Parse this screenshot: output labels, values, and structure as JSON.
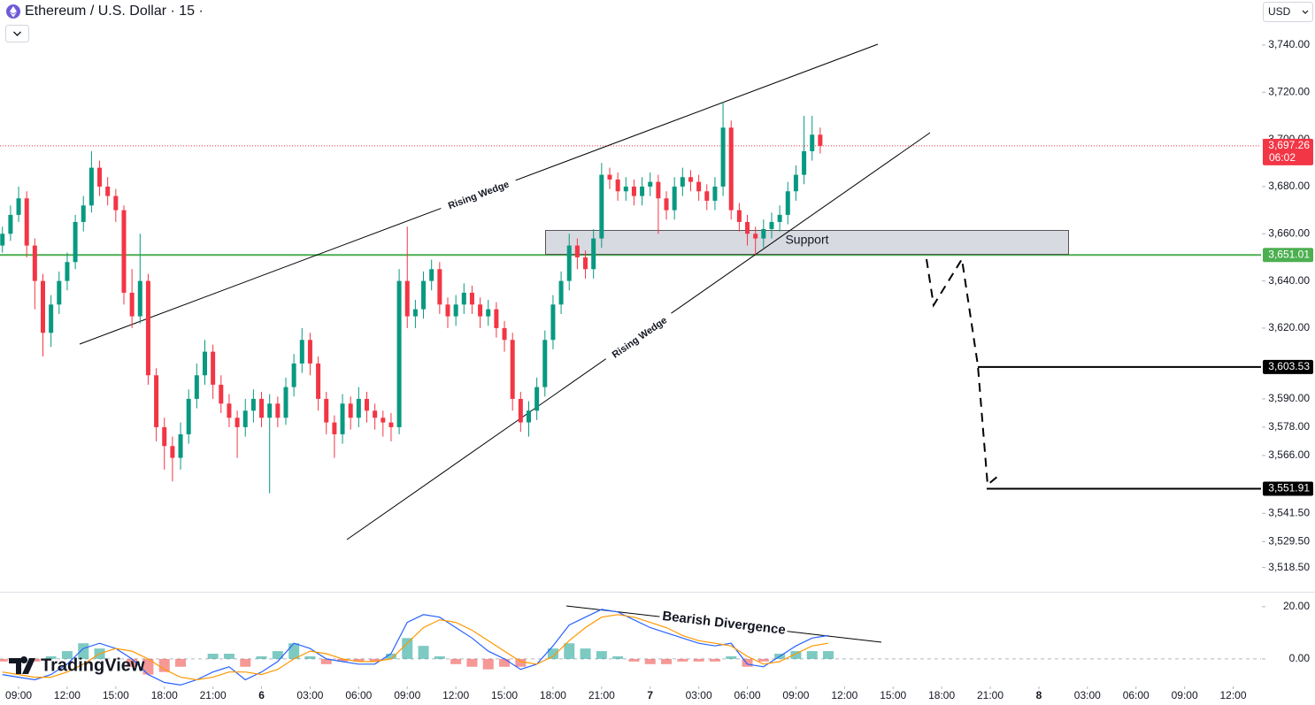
{
  "header": {
    "title": "Ethereum / U.S. Dollar · 15 ·",
    "currency": "USD"
  },
  "watermark": "TradingView",
  "chart_data": [
    {
      "type": "candlestick",
      "x": [
        -1,
        -0.5,
        0,
        0.5,
        1,
        1.5,
        2,
        2.5,
        3,
        3.5,
        4,
        4.5,
        5,
        5.5,
        6,
        6.5,
        7,
        7.5,
        8,
        8.5,
        9,
        9.5,
        10,
        10.5,
        11,
        11.5,
        12,
        12.5,
        13,
        13.5,
        14,
        14.5,
        15,
        15.5,
        16,
        16.5,
        17,
        17.5,
        18,
        18.5,
        19,
        19.5,
        20,
        20.5,
        21,
        21.5,
        22,
        22.5,
        23,
        23.5,
        24,
        24.5,
        25,
        25.5,
        26,
        26.5,
        27,
        27.5,
        28,
        28.5,
        29,
        29.5,
        30,
        30.5,
        31,
        31.5,
        32,
        32.5,
        33,
        33.5,
        34,
        34.5,
        35,
        35.5,
        36,
        36.5,
        37,
        37.5,
        38,
        38.5,
        39,
        39.5,
        40,
        40.5,
        41,
        41.5,
        42,
        42.5,
        43,
        43.5,
        44,
        44.5,
        45,
        45.5,
        46,
        46.5,
        47,
        47.5,
        48,
        48.5,
        49,
        49.5
      ],
      "ohlc": [
        [
          3655,
          3663,
          3652,
          3660
        ],
        [
          3660,
          3672,
          3657,
          3668
        ],
        [
          3668,
          3680,
          3665,
          3675
        ],
        [
          3675,
          3678,
          3650,
          3655
        ],
        [
          3655,
          3658,
          3628,
          3640
        ],
        [
          3640,
          3643,
          3608,
          3618
        ],
        [
          3618,
          3634,
          3612,
          3630
        ],
        [
          3630,
          3644,
          3626,
          3640
        ],
        [
          3640,
          3652,
          3636,
          3648
        ],
        [
          3648,
          3668,
          3645,
          3665
        ],
        [
          3665,
          3676,
          3661,
          3672
        ],
        [
          3672,
          3695,
          3669,
          3688
        ],
        [
          3688,
          3691,
          3676,
          3680
        ],
        [
          3680,
          3684,
          3672,
          3676
        ],
        [
          3676,
          3679,
          3665,
          3670
        ],
        [
          3670,
          3672,
          3630,
          3635
        ],
        [
          3635,
          3645,
          3620,
          3625
        ],
        [
          3625,
          3660,
          3622,
          3640
        ],
        [
          3640,
          3643,
          3596,
          3600
        ],
        [
          3600,
          3603,
          3572,
          3578
        ],
        [
          3578,
          3582,
          3560,
          3570
        ],
        [
          3570,
          3574,
          3555,
          3565
        ],
        [
          3565,
          3580,
          3560,
          3575
        ],
        [
          3575,
          3594,
          3571,
          3590
        ],
        [
          3590,
          3605,
          3586,
          3600
        ],
        [
          3600,
          3615,
          3596,
          3610
        ],
        [
          3610,
          3613,
          3590,
          3596
        ],
        [
          3596,
          3600,
          3584,
          3588
        ],
        [
          3588,
          3592,
          3578,
          3582
        ],
        [
          3582,
          3585,
          3565,
          3578
        ],
        [
          3578,
          3590,
          3574,
          3585
        ],
        [
          3585,
          3594,
          3580,
          3590
        ],
        [
          3590,
          3593,
          3578,
          3582
        ],
        [
          3582,
          3592,
          3550,
          3588
        ],
        [
          3588,
          3591,
          3578,
          3582
        ],
        [
          3582,
          3599,
          3579,
          3595
        ],
        [
          3595,
          3609,
          3591,
          3605
        ],
        [
          3605,
          3620,
          3601,
          3615
        ],
        [
          3615,
          3618,
          3600,
          3605
        ],
        [
          3605,
          3608,
          3585,
          3590
        ],
        [
          3590,
          3593,
          3575,
          3580
        ],
        [
          3580,
          3583,
          3565,
          3575
        ],
        [
          3575,
          3592,
          3571,
          3588
        ],
        [
          3588,
          3591,
          3577,
          3582
        ],
        [
          3582,
          3595,
          3578,
          3590
        ],
        [
          3590,
          3593,
          3580,
          3585
        ],
        [
          3585,
          3588,
          3577,
          3582
        ],
        [
          3582,
          3585,
          3574,
          3580
        ],
        [
          3580,
          3584,
          3572,
          3578
        ],
        [
          3578,
          3645,
          3575,
          3640
        ],
        [
          3640,
          3663,
          3620,
          3625
        ],
        [
          3625,
          3632,
          3620,
          3628
        ],
        [
          3628,
          3644,
          3624,
          3640
        ],
        [
          3640,
          3649,
          3636,
          3645
        ],
        [
          3645,
          3648,
          3626,
          3630
        ],
        [
          3630,
          3633,
          3620,
          3625
        ],
        [
          3625,
          3634,
          3621,
          3630
        ],
        [
          3630,
          3639,
          3626,
          3635
        ],
        [
          3635,
          3638,
          3626,
          3630
        ],
        [
          3630,
          3633,
          3620,
          3625
        ],
        [
          3625,
          3632,
          3621,
          3628
        ],
        [
          3628,
          3631,
          3616,
          3620
        ],
        [
          3620,
          3623,
          3610,
          3615
        ],
        [
          3615,
          3618,
          3585,
          3590
        ],
        [
          3590,
          3593,
          3576,
          3580
        ],
        [
          3580,
          3589,
          3574,
          3585
        ],
        [
          3585,
          3599,
          3581,
          3595
        ],
        [
          3595,
          3619,
          3591,
          3615
        ],
        [
          3615,
          3634,
          3611,
          3630
        ],
        [
          3630,
          3644,
          3626,
          3640
        ],
        [
          3640,
          3660,
          3636,
          3655
        ],
        [
          3655,
          3658,
          3645,
          3650
        ],
        [
          3650,
          3653,
          3641,
          3645
        ],
        [
          3645,
          3662,
          3641,
          3658
        ],
        [
          3658,
          3690,
          3654,
          3685
        ],
        [
          3685,
          3688,
          3679,
          3683
        ],
        [
          3683,
          3686,
          3674,
          3678
        ],
        [
          3678,
          3684,
          3674,
          3680
        ],
        [
          3680,
          3683,
          3672,
          3676
        ],
        [
          3676,
          3684,
          3672,
          3680
        ],
        [
          3680,
          3686,
          3676,
          3682
        ],
        [
          3682,
          3685,
          3660,
          3675
        ],
        [
          3675,
          3678,
          3666,
          3670
        ],
        [
          3670,
          3684,
          3666,
          3680
        ],
        [
          3680,
          3688,
          3676,
          3684
        ],
        [
          3684,
          3687,
          3678,
          3682
        ],
        [
          3682,
          3685,
          3674,
          3678
        ],
        [
          3678,
          3681,
          3670,
          3674
        ],
        [
          3674,
          3684,
          3670,
          3680
        ],
        [
          3680,
          3716,
          3676,
          3705
        ],
        [
          3705,
          3708,
          3666,
          3670
        ],
        [
          3670,
          3673,
          3661,
          3665
        ],
        [
          3665,
          3668,
          3655,
          3660
        ],
        [
          3660,
          3663,
          3651,
          3658
        ],
        [
          3658,
          3666,
          3654,
          3662
        ],
        [
          3662,
          3669,
          3658,
          3665
        ],
        [
          3665,
          3672,
          3661,
          3668
        ],
        [
          3668,
          3682,
          3664,
          3678
        ],
        [
          3678,
          3689,
          3674,
          3685
        ],
        [
          3685,
          3710,
          3681,
          3695
        ],
        [
          3695,
          3710,
          3691,
          3702
        ],
        [
          3702,
          3705,
          3694,
          3697.26
        ]
      ],
      "up_color": "#089981",
      "down_color": "#f23645",
      "xlim": [
        -1.15,
        76.72
      ],
      "ylim": [
        3508.6,
        3759.1
      ],
      "yticks": [
        {
          "value": 3740,
          "label": "3,740.00"
        },
        {
          "value": 3720,
          "label": "3,720.00"
        },
        {
          "value": 3700,
          "label": "3,700.00"
        },
        {
          "value": 3680,
          "label": "3,680.00"
        },
        {
          "value": 3660,
          "label": "3,660.00"
        },
        {
          "value": 3640,
          "label": "3,640.00"
        },
        {
          "value": 3620,
          "label": "3,620.00"
        },
        {
          "value": 3590,
          "label": "3,590.00"
        },
        {
          "value": 3578,
          "label": "3,578.00"
        },
        {
          "value": 3566,
          "label": "3,566.00"
        },
        {
          "value": 3541.5,
          "label": "3,541.50"
        },
        {
          "value": 3529.5,
          "label": "3,529.50"
        },
        {
          "value": 3518.5,
          "label": "3,518.50"
        }
      ],
      "xticks": [
        {
          "value": 0,
          "label": "09:00"
        },
        {
          "value": 3,
          "label": "12:00"
        },
        {
          "value": 6,
          "label": "15:00"
        },
        {
          "value": 9,
          "label": "18:00"
        },
        {
          "value": 12,
          "label": "21:00"
        },
        {
          "value": 15,
          "label": "6"
        },
        {
          "value": 18,
          "label": "03:00"
        },
        {
          "value": 21,
          "label": "06:00"
        },
        {
          "value": 24,
          "label": "09:00"
        },
        {
          "value": 27,
          "label": "12:00"
        },
        {
          "value": 30,
          "label": "15:00"
        },
        {
          "value": 33,
          "label": "18:00"
        },
        {
          "value": 36,
          "label": "21:00"
        },
        {
          "value": 39,
          "label": "7"
        },
        {
          "value": 42,
          "label": "03:00"
        },
        {
          "value": 45,
          "label": "06:00"
        },
        {
          "value": 48,
          "label": "09:00"
        },
        {
          "value": 51,
          "label": "12:00"
        },
        {
          "value": 54,
          "label": "15:00"
        },
        {
          "value": 57,
          "label": "18:00"
        },
        {
          "value": 60,
          "label": "21:00"
        },
        {
          "value": 63,
          "label": "8"
        },
        {
          "value": 66,
          "label": "03:00"
        },
        {
          "value": 69,
          "label": "06:00"
        },
        {
          "value": 72,
          "label": "09:00"
        },
        {
          "value": 75,
          "label": "12:00"
        }
      ],
      "levels": [
        {
          "value": 3651.01,
          "label": "3,651.01",
          "color": "#4caf50"
        },
        {
          "value": 3603.53,
          "label": "3,603.53",
          "color": "#000000"
        },
        {
          "value": 3551.91,
          "label": "3,551.91",
          "color": "#000000"
        }
      ],
      "current_price": {
        "value": 3697.26,
        "label": "3,697.26",
        "countdown": "06:02",
        "color": "#f23645"
      },
      "annotations": [
        "Rising Wedge",
        "Rising Wedge",
        "Support"
      ]
    },
    {
      "type": "macd",
      "x": [
        -1,
        0,
        1,
        2,
        3,
        4,
        5,
        6,
        7,
        8,
        9,
        10,
        11,
        12,
        13,
        14,
        15,
        16,
        17,
        18,
        19,
        20,
        21,
        22,
        23,
        24,
        25,
        26,
        27,
        28,
        29,
        30,
        31,
        32,
        33,
        34,
        35,
        36,
        37,
        38,
        39,
        40,
        41,
        42,
        43,
        44,
        45,
        46,
        47,
        48,
        49,
        50
      ],
      "xlim": [
        -1.15,
        76.72
      ],
      "ylim": [
        -10.2,
        25.4
      ],
      "yticks": [
        {
          "value": 20,
          "label": "20.00"
        },
        {
          "value": 0,
          "label": "0.00"
        }
      ],
      "series": [
        {
          "color": "#2962ff",
          "values": [
            -6,
            -7,
            -8,
            -6,
            -2,
            4,
            6,
            4,
            0,
            -6,
            -9,
            -10,
            -8,
            -5,
            -3,
            -8,
            -5,
            -1,
            6,
            4,
            0,
            -1,
            -2,
            -2,
            2,
            14,
            17,
            16,
            12,
            8,
            3,
            0,
            -4,
            -2,
            5,
            13,
            16,
            19,
            18,
            15,
            12,
            10,
            8,
            6,
            5,
            6,
            -2,
            -3,
            1,
            5,
            8,
            9
          ]
        },
        {
          "color": "#ff9800",
          "values": [
            -5,
            -6,
            -7,
            -7,
            -5,
            -2,
            2,
            4,
            3,
            0,
            -4,
            -7,
            -8,
            -7,
            -5,
            -5,
            -6,
            -4,
            0,
            3,
            2,
            0,
            -1,
            -1,
            0,
            6,
            12,
            15,
            14,
            11,
            7,
            3,
            -1,
            -2,
            1,
            7,
            12,
            16,
            17,
            16,
            14,
            12,
            9,
            7,
            6,
            5,
            1,
            -2,
            -1,
            2,
            5,
            6
          ]
        }
      ],
      "histogram": {
        "up_color": "#26a69a",
        "down_color": "#ef5350",
        "values": [
          -1,
          -1,
          -1,
          1,
          3,
          6,
          4,
          0,
          -3,
          -6,
          -5,
          -3,
          0,
          2,
          2,
          -3,
          1,
          3,
          6,
          1,
          -2,
          -1,
          -1,
          -1,
          2,
          8,
          5,
          1,
          -2,
          -3,
          -4,
          -3,
          -3,
          0,
          4,
          6,
          4,
          3,
          1,
          -1,
          -2,
          -2,
          -1,
          -1,
          -1,
          1,
          -3,
          -1,
          2,
          3,
          3,
          3
        ]
      },
      "annotations": [
        "Bearish Divergence"
      ]
    }
  ]
}
